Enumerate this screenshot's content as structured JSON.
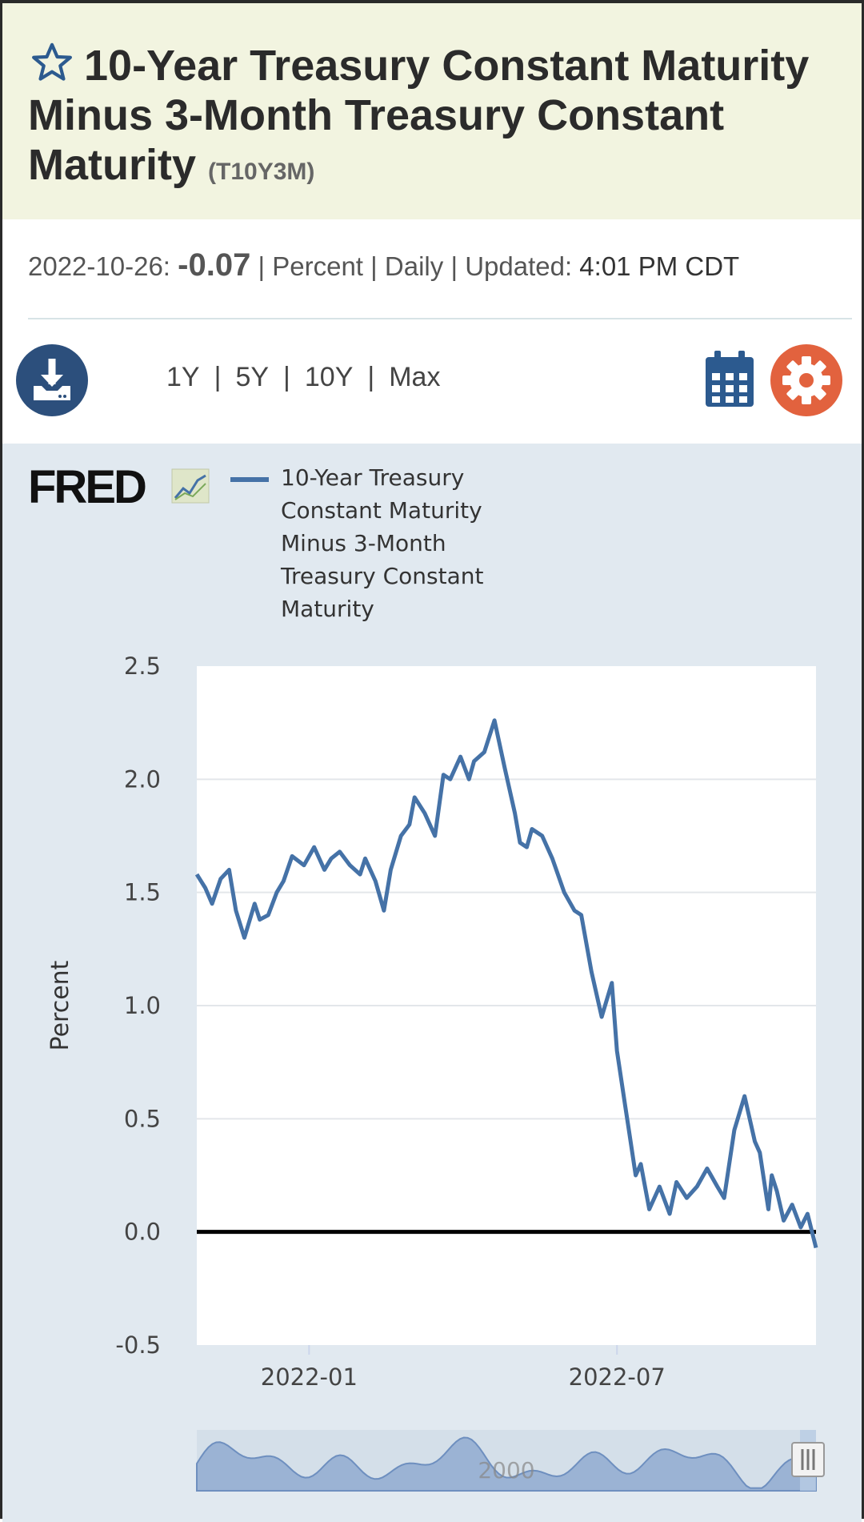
{
  "header": {
    "title": "10-Year Treasury Constant Maturity Minus 3-Month Treasury Constant Maturity",
    "series_code": "(T10Y3M)"
  },
  "meta": {
    "date": "2022-10-26:",
    "value": "-0.07",
    "units": "Percent",
    "frequency": "Daily",
    "updated_label": "Updated:",
    "updated_time": "4:01 PM CDT"
  },
  "toolbar": {
    "ranges": [
      "1Y",
      "5Y",
      "10Y",
      "Max"
    ]
  },
  "colors": {
    "series": "#4572a7",
    "download_button": "#2c4f7c",
    "settings_button": "#e2623e",
    "header_bg": "#f2f4e0",
    "chart_bg": "#e1e9f0"
  },
  "icons": [
    "star-icon",
    "download-icon",
    "calendar-icon",
    "gear-icon",
    "fred-logo",
    "navigator-handle-icon"
  ],
  "chart_data": {
    "type": "line",
    "ylabel": "Percent",
    "ylim": [
      -0.5,
      2.5
    ],
    "yticks": [
      "2.5",
      "2.0",
      "1.5",
      "1.0",
      "0.5",
      "0.0",
      "-0.5"
    ],
    "xticks": [
      "2022-01",
      "2022-07"
    ],
    "xlim": [
      "2021-10-27",
      "2022-10-26"
    ],
    "grid": true,
    "legend_position": "top",
    "navigator_label": "2000",
    "series": [
      {
        "name": "10-Year Treasury Constant Maturity Minus 3-Month Treasury Constant Maturity",
        "x": [
          "2021-10-27",
          "2021-11-01",
          "2021-11-05",
          "2021-11-10",
          "2021-11-15",
          "2021-11-19",
          "2021-11-24",
          "2021-11-30",
          "2021-12-03",
          "2021-12-08",
          "2021-12-13",
          "2021-12-17",
          "2021-12-22",
          "2021-12-29",
          "2022-01-04",
          "2022-01-10",
          "2022-01-14",
          "2022-01-19",
          "2022-01-25",
          "2022-01-31",
          "2022-02-03",
          "2022-02-09",
          "2022-02-14",
          "2022-02-18",
          "2022-02-24",
          "2022-03-01",
          "2022-03-04",
          "2022-03-10",
          "2022-03-16",
          "2022-03-21",
          "2022-03-25",
          "2022-03-31",
          "2022-04-05",
          "2022-04-08",
          "2022-04-14",
          "2022-04-20",
          "2022-04-26",
          "2022-05-02",
          "2022-05-05",
          "2022-05-09",
          "2022-05-12",
          "2022-05-18",
          "2022-05-24",
          "2022-05-31",
          "2022-06-06",
          "2022-06-10",
          "2022-06-16",
          "2022-06-22",
          "2022-06-28",
          "2022-07-01",
          "2022-07-06",
          "2022-07-08",
          "2022-07-12",
          "2022-07-15",
          "2022-07-20",
          "2022-07-26",
          "2022-08-01",
          "2022-08-05",
          "2022-08-11",
          "2022-08-17",
          "2022-08-23",
          "2022-08-29",
          "2022-09-02",
          "2022-09-08",
          "2022-09-14",
          "2022-09-20",
          "2022-09-23",
          "2022-09-26",
          "2022-09-28",
          "2022-09-30",
          "2022-10-03",
          "2022-10-07",
          "2022-10-12",
          "2022-10-17",
          "2022-10-21",
          "2022-10-26"
        ],
        "values": [
          1.58,
          1.52,
          1.45,
          1.56,
          1.6,
          1.42,
          1.3,
          1.45,
          1.38,
          1.4,
          1.5,
          1.55,
          1.66,
          1.62,
          1.7,
          1.6,
          1.65,
          1.68,
          1.62,
          1.58,
          1.65,
          1.55,
          1.42,
          1.6,
          1.75,
          1.8,
          1.92,
          1.85,
          1.75,
          2.02,
          2.0,
          2.1,
          2.0,
          2.08,
          2.12,
          2.26,
          2.05,
          1.85,
          1.72,
          1.7,
          1.78,
          1.75,
          1.65,
          1.5,
          1.42,
          1.4,
          1.15,
          0.95,
          1.1,
          0.8,
          0.55,
          0.45,
          0.25,
          0.3,
          0.1,
          0.2,
          0.08,
          0.22,
          0.15,
          0.2,
          0.28,
          0.2,
          0.15,
          0.45,
          0.6,
          0.4,
          0.35,
          0.2,
          0.1,
          0.25,
          0.18,
          0.05,
          0.12,
          0.02,
          0.08,
          -0.07
        ]
      }
    ]
  }
}
